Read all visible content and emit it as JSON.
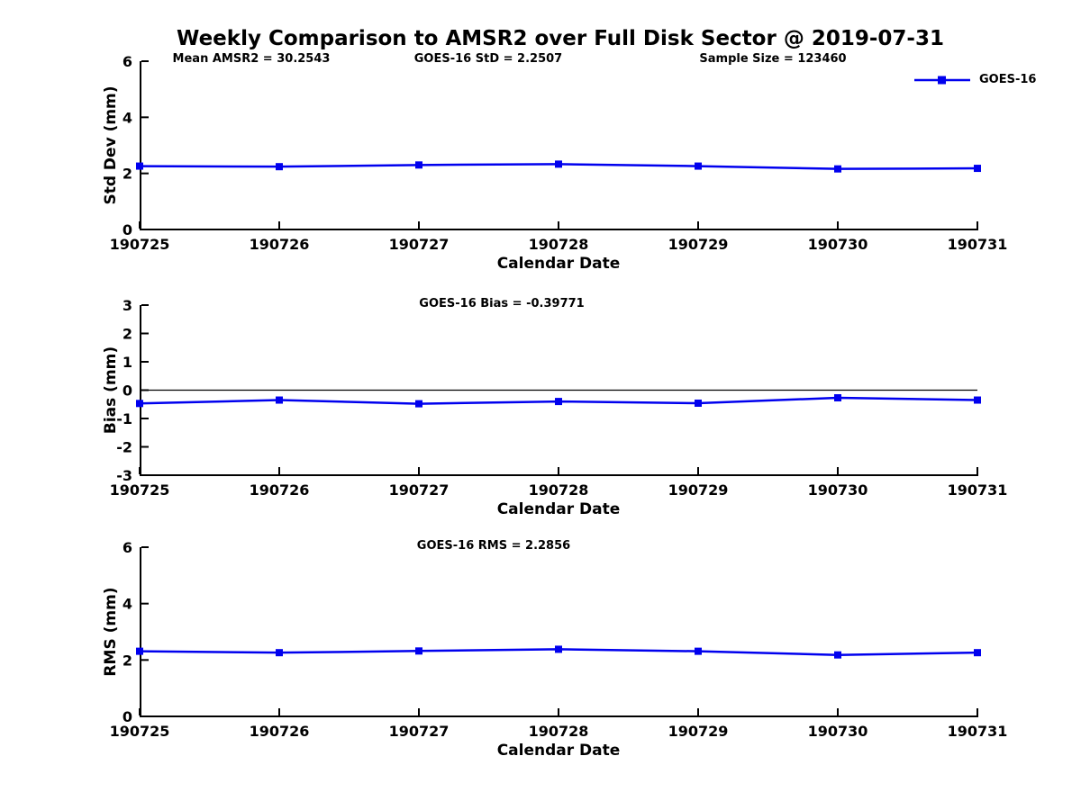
{
  "chart_data": {
    "type": "line",
    "title": "Weekly Comparison to AMSR2 over Full Disk Sector @ 2019-07-31",
    "categories": [
      "190725",
      "190726",
      "190727",
      "190728",
      "190729",
      "190730",
      "190731"
    ],
    "xlabel": "Calendar Date",
    "line_color": "#0000EE",
    "axis_color": "#000000",
    "grid": false,
    "legend": {
      "label": "GOES-16",
      "position": "top-right-outside",
      "marker": "filled-square"
    },
    "subplots": [
      {
        "name": "std-dev",
        "ylabel": "Std Dev (mm)",
        "ylim": [
          0,
          6
        ],
        "yticks": [
          0,
          2,
          4,
          6
        ],
        "annotations": [
          "Mean AMSR2 = 30.2543",
          "GOES-16 StD = 2.2507",
          "Sample Size = 123460"
        ],
        "series": [
          {
            "name": "GOES-16",
            "values": [
              2.26,
              2.24,
              2.3,
              2.33,
              2.26,
              2.16,
              2.18
            ]
          }
        ]
      },
      {
        "name": "bias",
        "ylabel": "Bias (mm)",
        "ylim": [
          -3,
          3
        ],
        "yticks": [
          -3,
          -2,
          -1,
          0,
          1,
          2,
          3
        ],
        "title": "GOES-16 Bias  = -0.39771",
        "zero_line": true,
        "series": [
          {
            "name": "GOES-16",
            "values": [
              -0.47,
              -0.35,
              -0.48,
              -0.4,
              -0.46,
              -0.27,
              -0.35
            ]
          }
        ]
      },
      {
        "name": "rms",
        "ylabel": "RMS (mm)",
        "ylim": [
          0,
          6
        ],
        "yticks": [
          0,
          2,
          4,
          6
        ],
        "title": "GOES-16 RMS = 2.2856",
        "series": [
          {
            "name": "GOES-16",
            "values": [
              2.31,
              2.26,
              2.32,
              2.38,
              2.31,
              2.18,
              2.26
            ]
          }
        ]
      }
    ]
  }
}
